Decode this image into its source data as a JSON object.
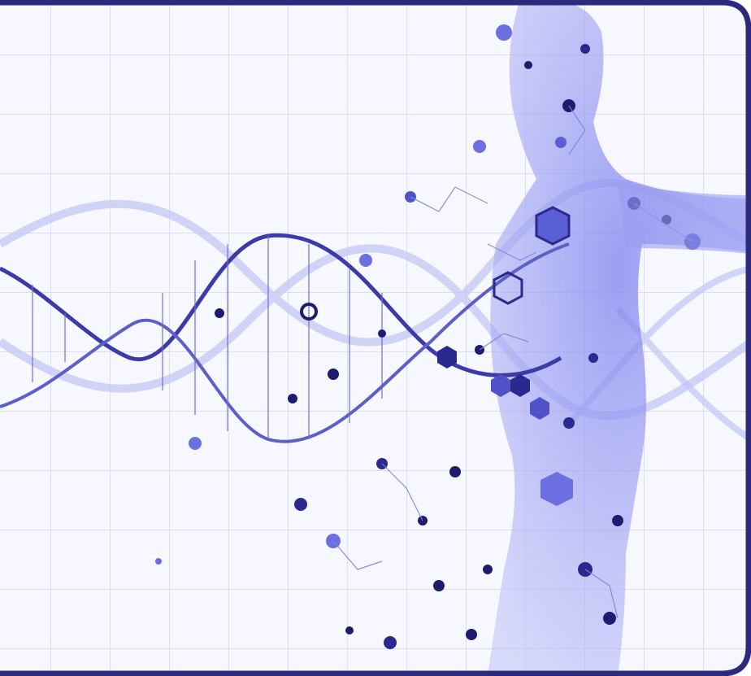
{
  "image": {
    "subject": "dna-helix-and-human-figure",
    "colors": {
      "background": "#f6f6ff",
      "grid": "#cfd3f7",
      "helix_dark": "#3b3aa8",
      "helix_light": "#a9acee",
      "figure": "#8b8ef0",
      "molecule_dark": "#1e1c6e",
      "molecule_mid": "#5b5fd6",
      "border": "#2b2a7c"
    }
  }
}
